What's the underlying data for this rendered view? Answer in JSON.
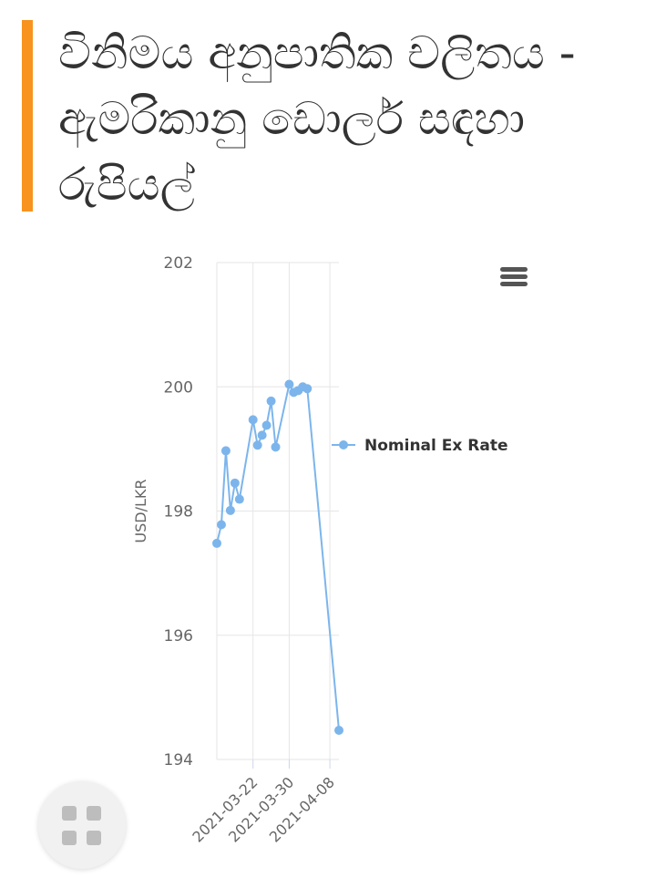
{
  "title": "විනිමය අනුපාතික චලිතය - ඇමරිකානු ඩොලර් සඳහා රුපියල්",
  "menu_icon": "hamburger-menu-icon",
  "fab_icon": "grid-apps-icon",
  "colors": {
    "accent": "#f7931e",
    "series": "#7cb5ec",
    "text": "#333333",
    "grid": "#e6e6e6"
  },
  "chart_data": {
    "type": "line",
    "ylabel": "USD/LKR",
    "xlabel": "",
    "ylim": [
      194,
      202
    ],
    "yticks": [
      194,
      196,
      198,
      200,
      202
    ],
    "xlim": [
      "2021-03-14",
      "2021-04-10"
    ],
    "xticks": [
      "2021-03-22",
      "2021-03-30",
      "2021-04-08"
    ],
    "grid": true,
    "legend_position": "right",
    "series": [
      {
        "name": "Nominal Ex Rate",
        "x": [
          "2021-03-14",
          "2021-03-15",
          "2021-03-16",
          "2021-03-17",
          "2021-03-18",
          "2021-03-19",
          "2021-03-22",
          "2021-03-23",
          "2021-03-24",
          "2021-03-25",
          "2021-03-26",
          "2021-03-27",
          "2021-03-30",
          "2021-03-31",
          "2021-04-01",
          "2021-04-02",
          "2021-04-03",
          "2021-04-10"
        ],
        "values": [
          197.48,
          197.78,
          198.97,
          198.01,
          198.45,
          198.19,
          199.47,
          199.06,
          199.22,
          199.38,
          199.77,
          199.03,
          200.04,
          199.91,
          199.94,
          200.0,
          199.97,
          194.47
        ]
      }
    ]
  }
}
